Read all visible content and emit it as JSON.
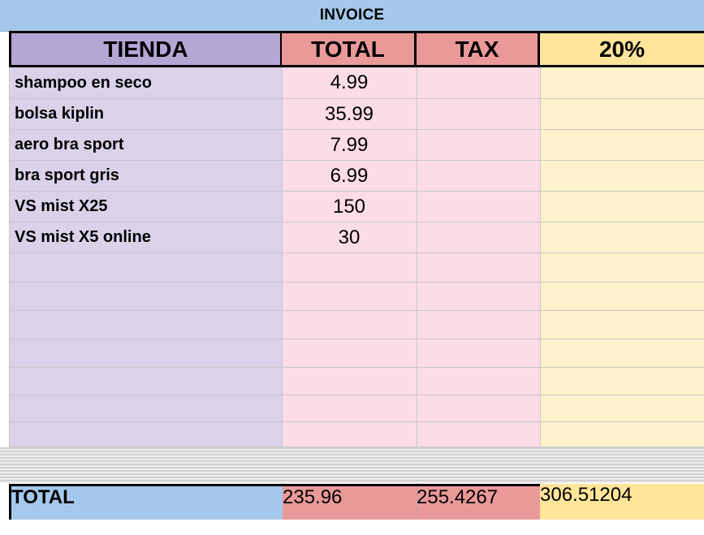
{
  "sheet": {
    "title": "INVOICE",
    "headers": {
      "tienda": "TIENDA",
      "total": "TOTAL",
      "tax": "TAX",
      "pct": "20%"
    },
    "rows": [
      {
        "item": "shampoo en seco",
        "total": "4.99"
      },
      {
        "item": "bolsa kiplin",
        "total": "35.99"
      },
      {
        "item": "aero bra sport",
        "total": "7.99"
      },
      {
        "item": "bra sport gris",
        "total": "6.99"
      },
      {
        "item": "VS mist X25",
        "total": "150"
      },
      {
        "item": "VS mist X5 online",
        "total": "30"
      },
      {
        "item": "",
        "total": ""
      },
      {
        "item": "",
        "total": ""
      },
      {
        "item": "",
        "total": ""
      },
      {
        "item": "",
        "total": ""
      },
      {
        "item": "",
        "total": ""
      },
      {
        "item": "",
        "total": ""
      },
      {
        "item": "",
        "total": ""
      }
    ],
    "totals": {
      "label": "TOTAL",
      "total": "235.96",
      "tax": "255.4267",
      "pct": "306.51204"
    }
  },
  "colors": {
    "title_bg": "#a4c8eb",
    "tienda_header": "#b4a7d6",
    "tienda_body": "#d9d2e9",
    "total_header": "#ea9999",
    "total_body": "#fcdce5",
    "pct_header": "#ffe599",
    "pct_body": "#fff2cc"
  }
}
